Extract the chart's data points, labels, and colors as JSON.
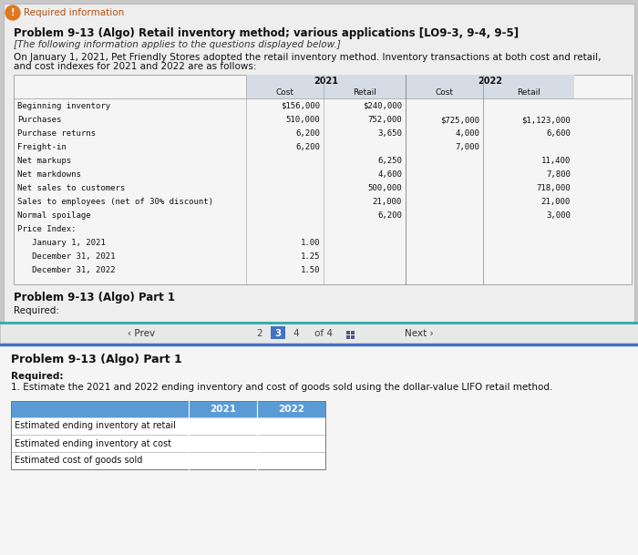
{
  "bg_color": "#c8c8c8",
  "top_panel_bg": "#ebebeb",
  "top_panel_border": "#cccccc",
  "header_text": "Required information",
  "header_color": "#b05010",
  "title": "Problem 9-13 (Algo) Retail inventory method; various applications [LO9-3, 9-4, 9-5]",
  "subtitle": "[The following information applies to the questions displayed below.]",
  "body_line1": "On January 1, 2021, Pet Friendly Stores adopted the retail inventory method. Inventory transactions at both cost and retail,",
  "body_line2": "and cost indexes for 2021 and 2022 are as follows:",
  "table_rows": [
    [
      "Beginning inventory",
      "$156,000",
      "$240,000",
      "",
      ""
    ],
    [
      "Purchases",
      "510,000",
      "752,000",
      "$725,000",
      "$1,123,000"
    ],
    [
      "Purchase returns",
      "6,200",
      "3,650",
      "4,000",
      "6,600"
    ],
    [
      "Freight-in",
      "6,200",
      "",
      "7,000",
      ""
    ],
    [
      "Net markups",
      "",
      "6,250",
      "",
      "11,400"
    ],
    [
      "Net markdowns",
      "",
      "4,600",
      "",
      "7,800"
    ],
    [
      "Net sales to customers",
      "",
      "500,000",
      "",
      "718,000"
    ],
    [
      "Sales to employees (net of 30% discount)",
      "",
      "21,000",
      "",
      "21,000"
    ],
    [
      "Normal spoilage",
      "",
      "6,200",
      "",
      "3,000"
    ],
    [
      "Price Index:",
      "",
      "",
      "",
      ""
    ],
    [
      "   January 1, 2021",
      "1.00",
      "",
      "",
      ""
    ],
    [
      "   December 31, 2021",
      "1.25",
      "",
      "",
      ""
    ],
    [
      "   December 31, 2022",
      "1.50",
      "",
      "",
      ""
    ]
  ],
  "part1_title": "Problem 9-13 (Algo) Part 1",
  "required_label": "Required:",
  "bottom_title": "Problem 9-13 (Algo) Part 1",
  "bottom_required": "Required:",
  "bottom_instruction": "1. Estimate the 2021 and 2022 ending inventory and cost of goods sold using the dollar-value LIFO retail method.",
  "answer_rows": [
    "Estimated ending inventory at retail",
    "Estimated ending inventory at cost",
    "Estimated cost of goods sold"
  ],
  "answer_header_color": "#5b9bd5",
  "table_header_bg": "#d5dce6",
  "nav_bg": "#e8e8e8",
  "nav_border_top": "#2eaaac",
  "bottom_section_bg": "#f8f8f8",
  "teal_divider": "#2eaaac",
  "blue_divider": "#4472c4"
}
